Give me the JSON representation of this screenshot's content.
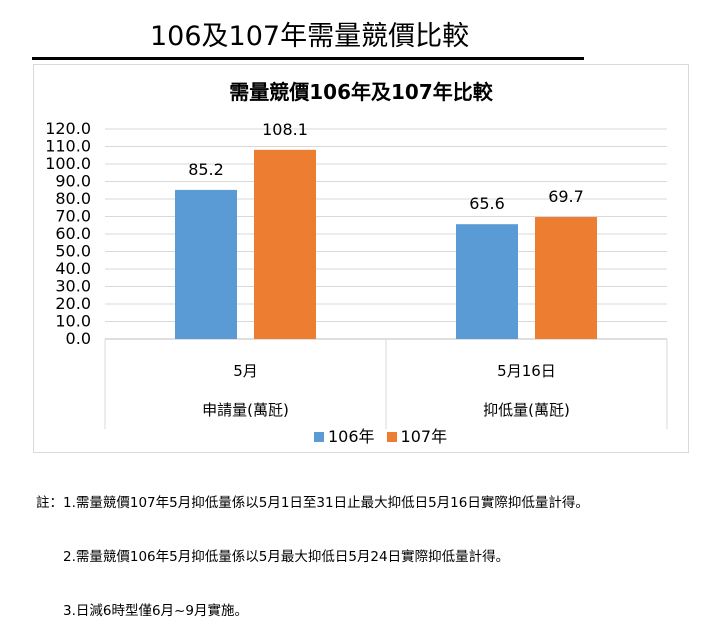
{
  "slide_title": "106及107年需量競價比較",
  "chart_data": {
    "type": "bar",
    "title": "需量競價106年及107年比較",
    "categories": [
      "5月",
      "5月16日"
    ],
    "category_groups": [
      "申請量(萬瓩)",
      "抑低量(萬瓩)"
    ],
    "series": [
      {
        "name": "106年",
        "values": [
          85.2,
          65.6
        ],
        "color": "#5b9bd5"
      },
      {
        "name": "107年",
        "values": [
          108.1,
          69.7
        ],
        "color": "#ed7d31"
      }
    ],
    "ylim": [
      0,
      120
    ],
    "ytick_step": 10,
    "grid": true,
    "legend": "bottom"
  },
  "notes": [
    "註：1.需量競價107年5月抑低量係以5月1日至31日止最大抑低日5月16日實際抑低量計得。",
    "2.需量競價106年5月抑低量係以5月最大抑低日5月24日實際抑低量計得。",
    "3.日減6時型僅6月~9月實施。"
  ]
}
